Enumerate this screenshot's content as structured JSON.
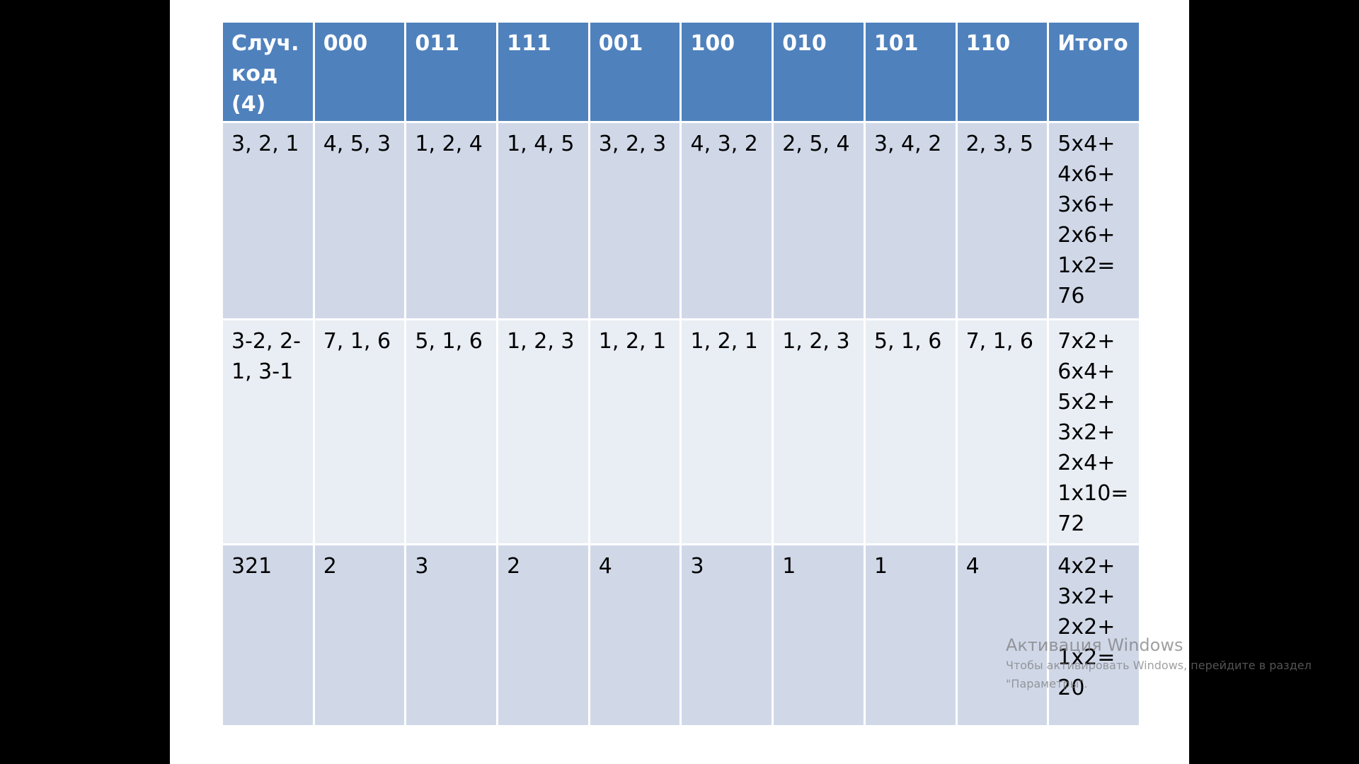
{
  "table": {
    "header": [
      "Случ.\nкод\n(4)",
      "000",
      "011",
      "111",
      "001",
      "100",
      "010",
      "101",
      "110",
      "Итого"
    ],
    "rows": [
      [
        "3, 2, 1",
        "4, 5, 3",
        "1, 2, 4",
        "1, 4, 5",
        "3, 2, 3",
        "4, 3, 2",
        "2, 5, 4",
        "3, 4, 2",
        "2, 3, 5",
        "5x4+\n4x6+\n3x6+\n2x6+\n1x2=\n76"
      ],
      [
        "3-2, 2-\n1, 3-1",
        "7, 1, 6",
        "5, 1, 6",
        "1, 2, 3",
        "1, 2, 1",
        "1, 2, 1",
        "1, 2, 3",
        "5, 1, 6",
        "7, 1, 6",
        "7x2+\n6x4+\n5x2+\n3x2+\n2x4+\n1x10=\n72"
      ],
      [
        "321",
        "2",
        "3",
        "2",
        "4",
        "3",
        "1",
        "1",
        "4",
        "4x2+\n3x2+\n2x2+\n1x2=\n20"
      ]
    ]
  },
  "watermark": {
    "title": "Активация Windows",
    "text": "Чтобы активировать Windows, перейдите в раздел\n\"Параметры\"."
  }
}
